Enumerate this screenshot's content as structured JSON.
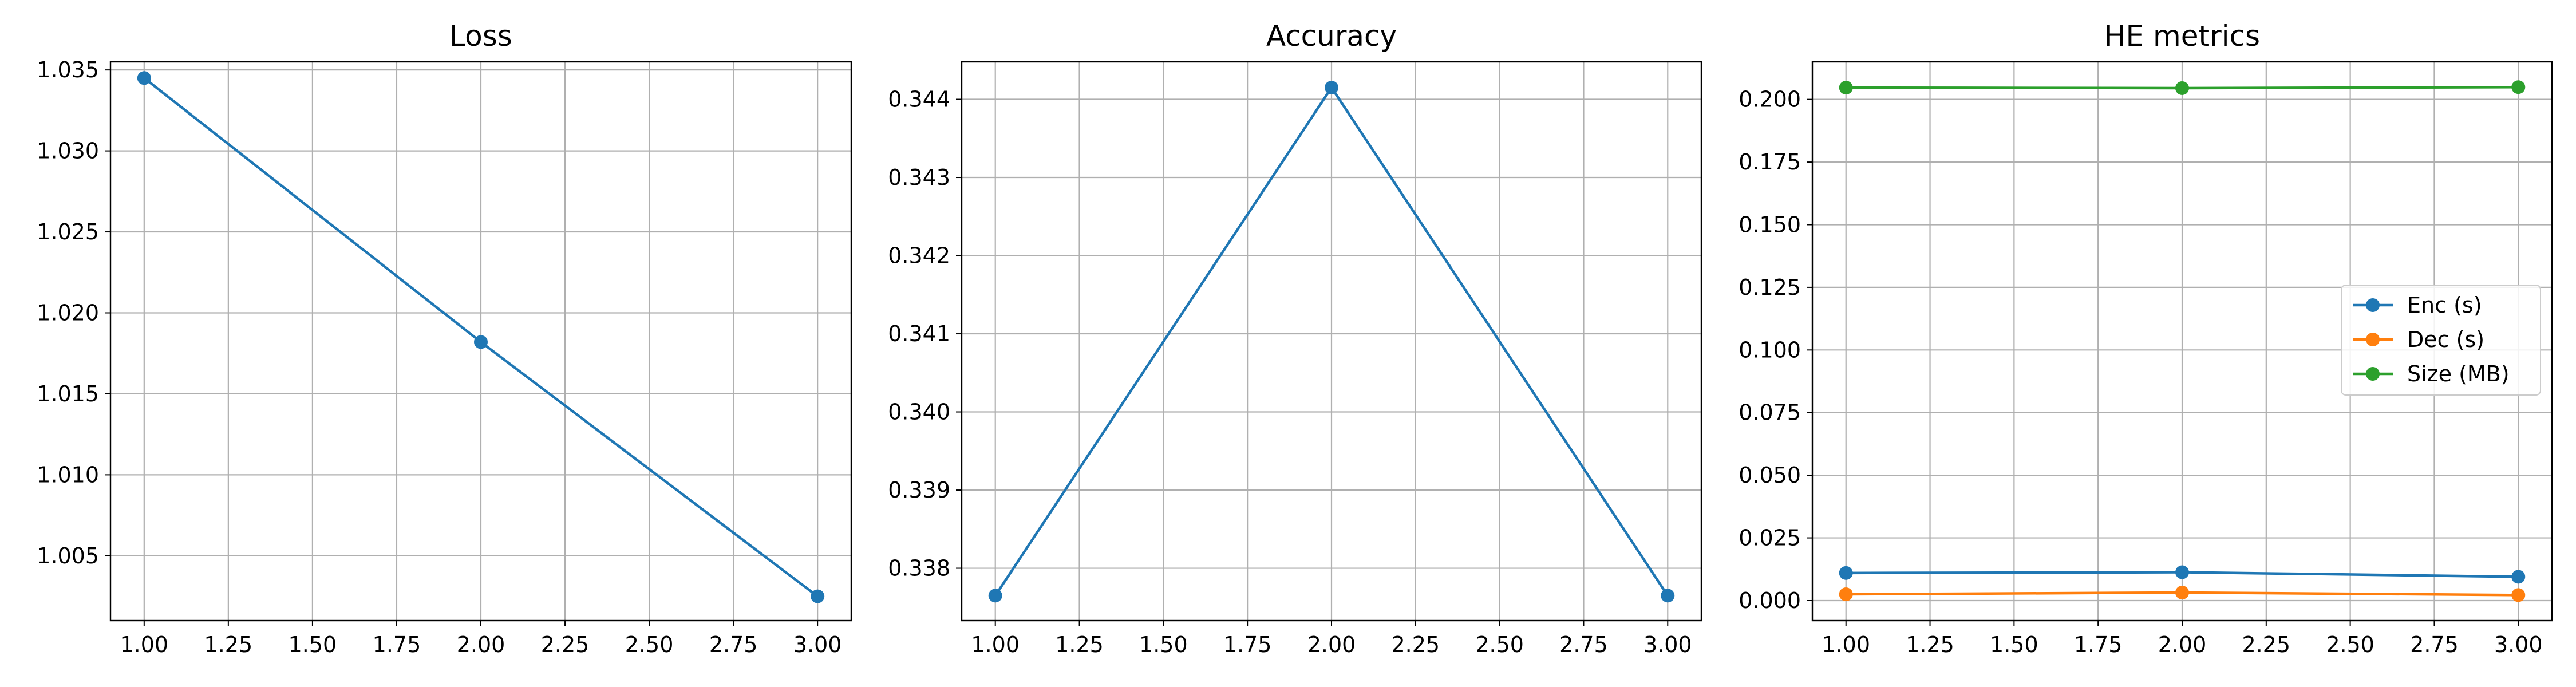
{
  "chart_data": [
    {
      "type": "line",
      "title": "Loss",
      "xlabel": "",
      "ylabel": "",
      "x": [
        1.0,
        2.0,
        3.0
      ],
      "series": [
        {
          "values": [
            1.0345,
            1.0182,
            1.0025
          ],
          "color": "#1f77b4"
        }
      ],
      "xlim": [
        0.9,
        3.1
      ],
      "ylim": [
        1.001,
        1.0355
      ],
      "xticks": [
        1.0,
        1.25,
        1.5,
        1.75,
        2.0,
        2.25,
        2.5,
        2.75,
        3.0
      ],
      "xtick_labels": [
        "1.00",
        "1.25",
        "1.50",
        "1.75",
        "2.00",
        "2.25",
        "2.50",
        "2.75",
        "3.00"
      ],
      "yticks": [
        1.005,
        1.01,
        1.015,
        1.02,
        1.025,
        1.03,
        1.035
      ],
      "ytick_labels": [
        "1.005",
        "1.010",
        "1.015",
        "1.020",
        "1.025",
        "1.030",
        "1.035"
      ],
      "grid": true,
      "legend": false
    },
    {
      "type": "line",
      "title": "Accuracy",
      "xlabel": "",
      "ylabel": "",
      "x": [
        1.0,
        2.0,
        3.0
      ],
      "series": [
        {
          "values": [
            0.33765,
            0.34415,
            0.33765
          ],
          "color": "#1f77b4"
        }
      ],
      "xlim": [
        0.9,
        3.1
      ],
      "ylim": [
        0.33733,
        0.34448
      ],
      "xticks": [
        1.0,
        1.25,
        1.5,
        1.75,
        2.0,
        2.25,
        2.5,
        2.75,
        3.0
      ],
      "xtick_labels": [
        "1.00",
        "1.25",
        "1.50",
        "1.75",
        "2.00",
        "2.25",
        "2.50",
        "2.75",
        "3.00"
      ],
      "yticks": [
        0.338,
        0.339,
        0.34,
        0.341,
        0.342,
        0.343,
        0.344
      ],
      "ytick_labels": [
        "0.338",
        "0.339",
        "0.340",
        "0.341",
        "0.342",
        "0.343",
        "0.344"
      ],
      "grid": true,
      "legend": false
    },
    {
      "type": "line",
      "title": "HE metrics",
      "xlabel": "",
      "ylabel": "",
      "x": [
        1.0,
        2.0,
        3.0
      ],
      "series": [
        {
          "name": "Enc (s)",
          "values": [
            0.011,
            0.0113,
            0.0095
          ],
          "color": "#1f77b4"
        },
        {
          "name": "Dec (s)",
          "values": [
            0.0025,
            0.0032,
            0.0022
          ],
          "color": "#ff7f0e"
        },
        {
          "name": "Size (MB)",
          "values": [
            0.2047,
            0.2045,
            0.2049
          ],
          "color": "#2ca02c"
        }
      ],
      "xlim": [
        0.9,
        3.1
      ],
      "ylim": [
        -0.008,
        0.215
      ],
      "xticks": [
        1.0,
        1.25,
        1.5,
        1.75,
        2.0,
        2.25,
        2.5,
        2.75,
        3.0
      ],
      "xtick_labels": [
        "1.00",
        "1.25",
        "1.50",
        "1.75",
        "2.00",
        "2.25",
        "2.50",
        "2.75",
        "3.00"
      ],
      "yticks": [
        0.0,
        0.025,
        0.05,
        0.075,
        0.1,
        0.125,
        0.15,
        0.175,
        0.2
      ],
      "ytick_labels": [
        "0.000",
        "0.025",
        "0.050",
        "0.075",
        "0.100",
        "0.125",
        "0.150",
        "0.175",
        "0.200"
      ],
      "grid": true,
      "legend": true,
      "legend_position": "center-right"
    }
  ]
}
